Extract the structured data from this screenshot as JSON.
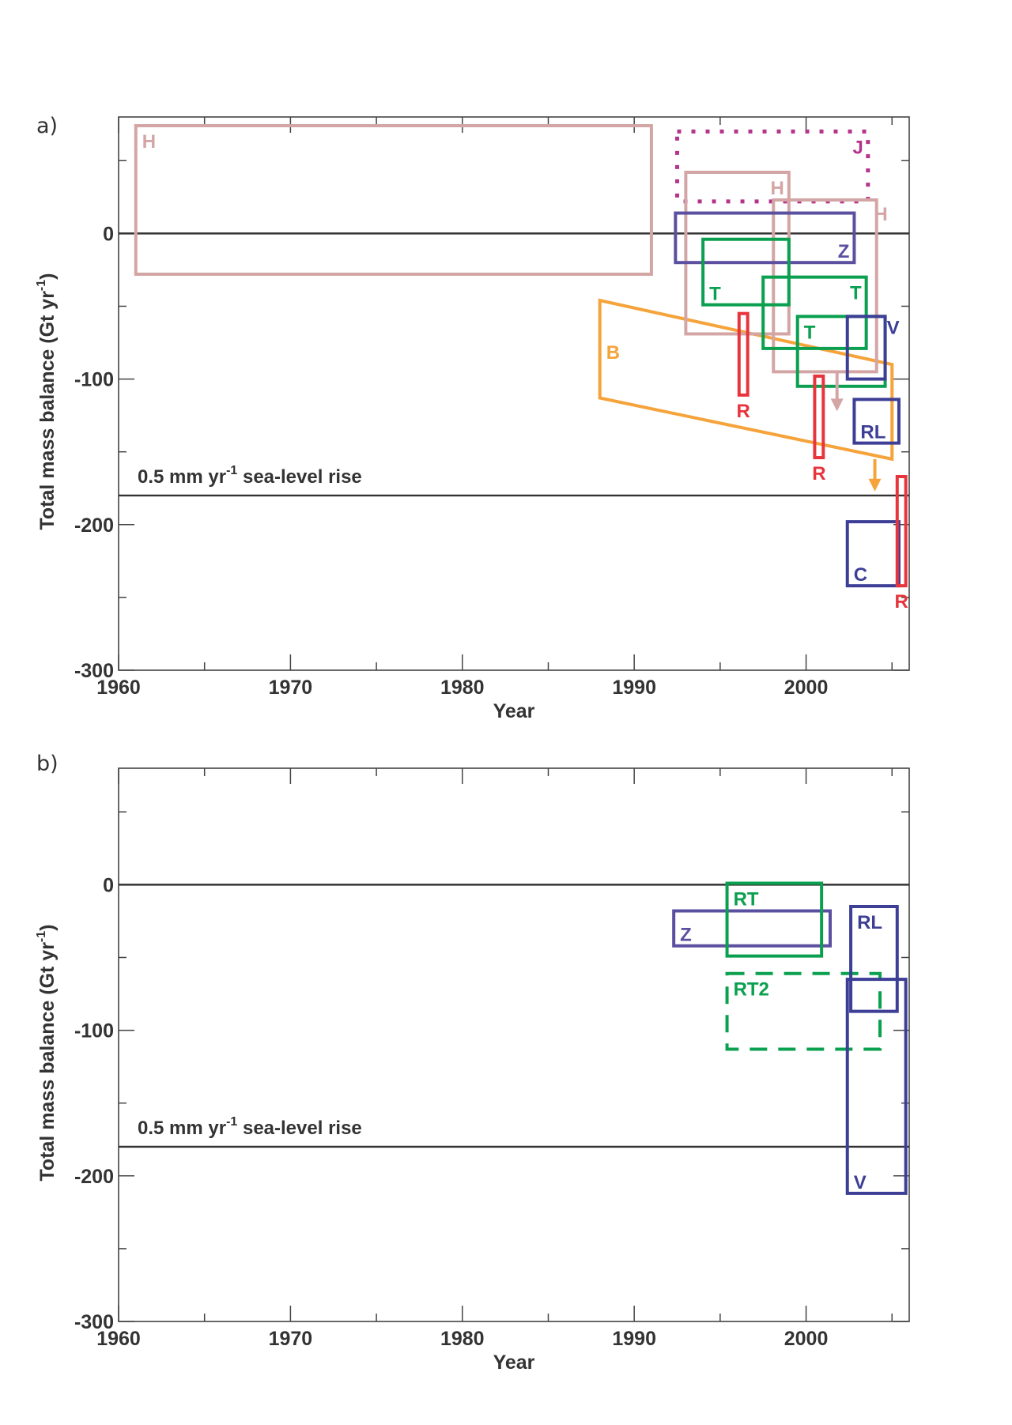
{
  "chart_data": [
    {
      "type": "box-ranges",
      "panel_label": "a)",
      "xlabel": "Year",
      "ylabel": "Total mass balance (Gt yr",
      "ylabel_sup": "-1",
      "ylabel_end": ")",
      "xlim": [
        1960,
        2006
      ],
      "ylim": [
        -300,
        80
      ],
      "x_ticks": [
        1960,
        1970,
        1980,
        1990,
        2000
      ],
      "x_minor_ticks": [
        1965,
        1975,
        1985,
        1995,
        2005
      ],
      "y_ticks": [
        0,
        -100,
        -200,
        -300
      ],
      "y_minor_ticks": [
        50,
        -50,
        -150,
        -250
      ],
      "reference_lines": [
        {
          "y": 0,
          "label": ""
        },
        {
          "y": -180,
          "label": "0.5 mm yr",
          "label_sup": "-1",
          "label_end": " sea-level rise"
        }
      ],
      "boxes": [
        {
          "label": "H",
          "x0": 1961,
          "x1": 1991,
          "y0": -28,
          "y1": 74,
          "color": "#d4a5a5",
          "style": "solid",
          "label_pos": "top-left"
        },
        {
          "label": "J",
          "x0": 1992.5,
          "x1": 2003.6,
          "y0": 22,
          "y1": 70,
          "color": "#b5338a",
          "style": "dotted",
          "label_pos": "top-right"
        },
        {
          "label": "H",
          "x0": 1993,
          "x1": 1999,
          "y0": -69,
          "y1": 42,
          "color": "#d4a5a5",
          "style": "solid",
          "label_pos": "top-right"
        },
        {
          "label": "H",
          "x0": 1998.1,
          "x1": 2004.1,
          "y0": -95,
          "y1": 23,
          "color": "#d4a5a5",
          "style": "solid",
          "label_pos": "top-right-out"
        },
        {
          "label": "Z",
          "x0": 1992.4,
          "x1": 2002.8,
          "y0": -20,
          "y1": 14,
          "color": "#5b4fa0",
          "style": "solid",
          "label_pos": "bottom-right"
        },
        {
          "label": "T",
          "x0": 1994,
          "x1": 1999,
          "y0": -49,
          "y1": -4,
          "color": "#0aa04f",
          "style": "solid",
          "label_pos": "bottom-left"
        },
        {
          "label": "T",
          "x0": 1997.5,
          "x1": 2003.5,
          "y0": -79,
          "y1": -30,
          "color": "#0aa04f",
          "style": "solid",
          "label_pos": "top-right"
        },
        {
          "label": "T",
          "x0": 1999.5,
          "x1": 2004.6,
          "y0": -105,
          "y1": -57,
          "color": "#0aa04f",
          "style": "solid",
          "label_pos": "top-left"
        },
        {
          "label": "V",
          "x0": 2002.4,
          "x1": 2004.6,
          "y0": -100,
          "y1": -57,
          "color": "#3d3f96",
          "style": "solid",
          "label_pos": "outside-right"
        },
        {
          "label": "R",
          "x0": 1996.1,
          "x1": 1996.6,
          "y0": -111,
          "y1": -55,
          "color": "#e8343c",
          "style": "solid",
          "label_pos": "below"
        },
        {
          "label": "R",
          "x0": 2000.5,
          "x1": 2001.0,
          "y0": -154,
          "y1": -98,
          "color": "#e8343c",
          "style": "solid",
          "label_pos": "below"
        },
        {
          "label": "RL",
          "x0": 2002.8,
          "x1": 2005.4,
          "y0": -144,
          "y1": -114,
          "color": "#3d3f96",
          "style": "solid",
          "label_pos": "bottom-left"
        },
        {
          "label": "C",
          "x0": 2002.4,
          "x1": 2005.4,
          "y0": -242,
          "y1": -198,
          "color": "#3d3f96",
          "style": "solid",
          "label_pos": "bottom-left"
        },
        {
          "label": "R",
          "x0": 2005.3,
          "x1": 2005.8,
          "y0": -242,
          "y1": -167,
          "color": "#e8343c",
          "style": "solid",
          "label_pos": "below"
        }
      ],
      "polygons": [
        {
          "label": "B",
          "points": [
            [
              1988,
              -46
            ],
            [
              2005,
              -90
            ],
            [
              2005,
              -155
            ],
            [
              1988,
              -113
            ]
          ],
          "color": "#f5a33a",
          "label_pos": "left"
        }
      ],
      "arrows": [
        {
          "x": 2001.8,
          "y_from": -95,
          "y_to": -120,
          "color": "#d4a5a5"
        },
        {
          "x": 2004.0,
          "y_from": -155,
          "y_to": -175,
          "color": "#f5a33a"
        }
      ]
    },
    {
      "type": "box-ranges",
      "panel_label": "b)",
      "xlabel": "Year",
      "ylabel": "Total mass balance (Gt yr",
      "ylabel_sup": "-1",
      "ylabel_end": ")",
      "xlim": [
        1960,
        2006
      ],
      "ylim": [
        -300,
        80
      ],
      "x_ticks": [
        1960,
        1970,
        1980,
        1990,
        2000
      ],
      "x_minor_ticks": [
        1965,
        1975,
        1985,
        1995,
        2005
      ],
      "y_ticks": [
        0,
        -100,
        -200,
        -300
      ],
      "y_minor_ticks": [
        50,
        -50,
        -150,
        -250
      ],
      "reference_lines": [
        {
          "y": 0,
          "label": ""
        },
        {
          "y": -180,
          "label": "0.5 mm yr",
          "label_sup": "-1",
          "label_end": " sea-level rise"
        }
      ],
      "boxes": [
        {
          "label": "Z",
          "x0": 1992.3,
          "x1": 2001.4,
          "y0": -42,
          "y1": -18,
          "color": "#5b4fa0",
          "style": "solid",
          "label_pos": "bottom-left"
        },
        {
          "label": "RT",
          "x0": 1995.4,
          "x1": 2000.9,
          "y0": -49,
          "y1": 1,
          "color": "#0aa04f",
          "style": "solid",
          "label_pos": "top-left"
        },
        {
          "label": "RT2",
          "x0": 1995.4,
          "x1": 2004.3,
          "y0": -113,
          "y1": -61,
          "color": "#0aa04f",
          "style": "dashed",
          "label_pos": "top-left"
        },
        {
          "label": "RL",
          "x0": 2002.6,
          "x1": 2005.3,
          "y0": -87,
          "y1": -15,
          "color": "#3d3f96",
          "style": "solid",
          "label_pos": "top-left"
        },
        {
          "label": "V",
          "x0": 2002.4,
          "x1": 2005.8,
          "y0": -212,
          "y1": -65,
          "color": "#3d3f96",
          "style": "solid",
          "label_pos": "bottom-left"
        }
      ],
      "polygons": [],
      "arrows": []
    }
  ]
}
